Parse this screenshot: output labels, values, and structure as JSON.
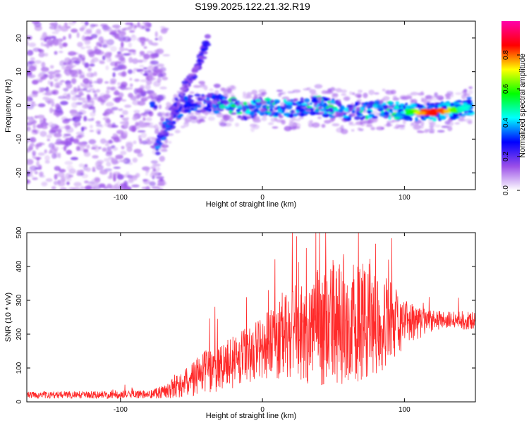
{
  "title": "S199.2025.122.21.32.R19",
  "chart_data": [
    {
      "type": "heatmap",
      "xlabel": "Height of straight line (km)",
      "ylabel": "Frequency (Hz)",
      "xlim": [
        -166,
        150
      ],
      "ylim": [
        -25,
        25
      ],
      "xticks": [
        -100,
        0,
        100
      ],
      "yticks": [
        -20,
        -10,
        0,
        10,
        20
      ],
      "colorbar": {
        "label": "Normalized spectral amplitude",
        "range": [
          0,
          1
        ],
        "ticks": [
          0.0,
          0.2,
          0.4,
          0.6,
          0.8
        ],
        "colormap": [
          "#ffffff",
          "#9a4ee8",
          "#0000ff",
          "#00ffff",
          "#00ff00",
          "#ffff00",
          "#ff0000",
          "#ff00aa"
        ]
      },
      "ridge": [
        {
          "x": -75,
          "y": -14
        },
        {
          "x": -70,
          "y": -8
        },
        {
          "x": -62,
          "y": -3
        },
        {
          "x": -55,
          "y": 0
        },
        {
          "x": -40,
          "y": 1
        },
        {
          "x": -25,
          "y": 0
        },
        {
          "x": -10,
          "y": -2
        },
        {
          "x": 0,
          "y": 0
        },
        {
          "x": 15,
          "y": -1
        },
        {
          "x": 40,
          "y": 0
        },
        {
          "x": 60,
          "y": -2
        },
        {
          "x": 80,
          "y": -1
        },
        {
          "x": 100,
          "y": -2
        },
        {
          "x": 120,
          "y": -2
        },
        {
          "x": 140,
          "y": -1
        },
        {
          "x": 148,
          "y": 0
        }
      ],
      "branch": [
        {
          "x": -65,
          "y": -4
        },
        {
          "x": -55,
          "y": 5
        },
        {
          "x": -45,
          "y": 12
        },
        {
          "x": -38,
          "y": 20
        }
      ]
    },
    {
      "type": "line",
      "xlabel": "Height of straight line (km)",
      "ylabel": "SNR (10 * v/v)",
      "xlim": [
        -166,
        150
      ],
      "ylim": [
        0,
        500
      ],
      "xticks": [
        -100,
        0,
        100
      ],
      "yticks": [
        0,
        100,
        200,
        300,
        400,
        500
      ],
      "series_color": "#ff2a2a",
      "envelope": [
        {
          "x": -166,
          "base": 20,
          "amp": 10
        },
        {
          "x": -80,
          "base": 22,
          "amp": 12
        },
        {
          "x": -60,
          "base": 40,
          "amp": 30
        },
        {
          "x": -45,
          "base": 80,
          "amp": 60
        },
        {
          "x": -20,
          "base": 120,
          "amp": 80
        },
        {
          "x": 0,
          "base": 160,
          "amp": 90
        },
        {
          "x": 20,
          "base": 200,
          "amp": 140
        },
        {
          "x": 50,
          "base": 230,
          "amp": 190
        },
        {
          "x": 80,
          "base": 240,
          "amp": 170
        },
        {
          "x": 100,
          "base": 230,
          "amp": 70
        },
        {
          "x": 120,
          "base": 240,
          "amp": 30
        },
        {
          "x": 150,
          "base": 240,
          "amp": 25
        }
      ]
    }
  ]
}
